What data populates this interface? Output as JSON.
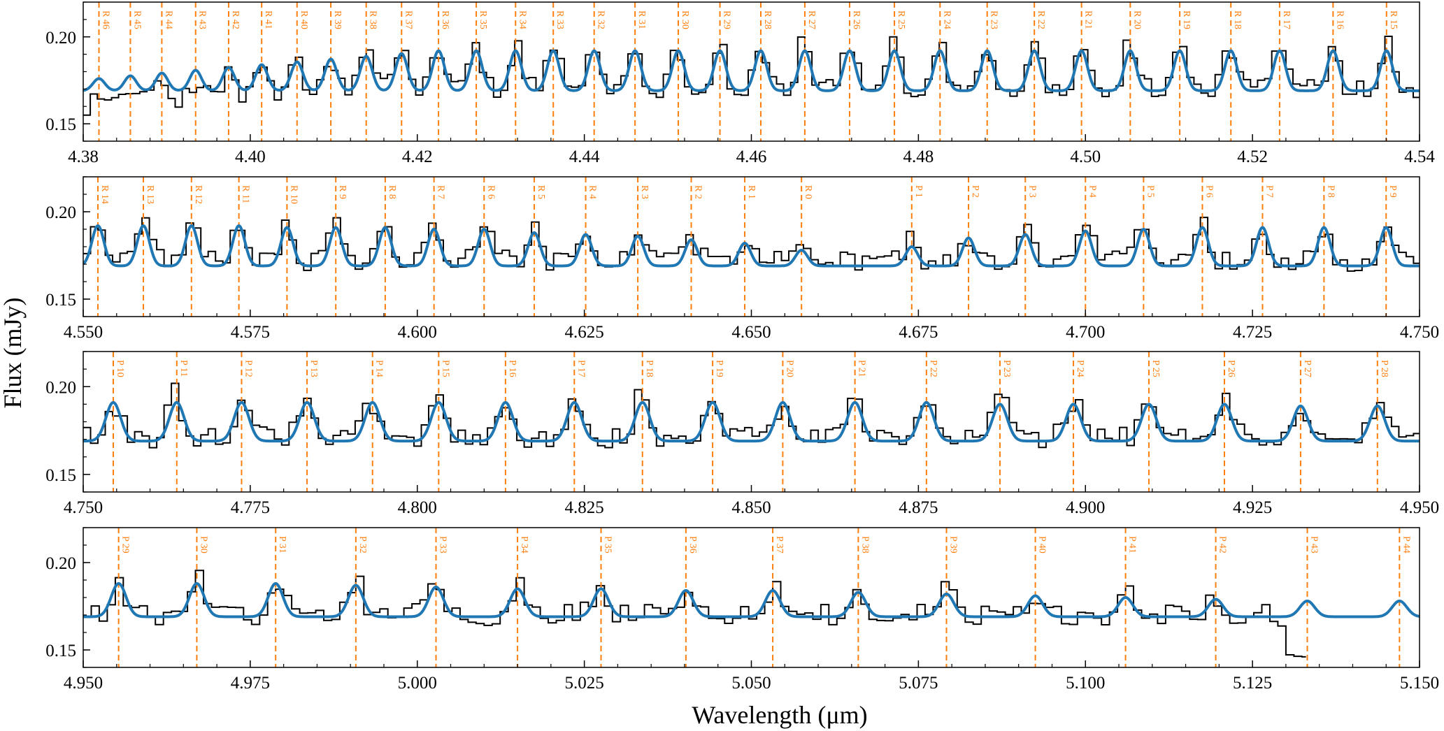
{
  "figure": {
    "ylabel": "Flux (mJy)",
    "xlabel": "Wavelength (μm)"
  },
  "colors": {
    "observed": "#000000",
    "model": "#1f77b4",
    "line_markers": "#ff7f0e"
  },
  "chart_data": [
    {
      "type": "line",
      "panel": 1,
      "xlim": [
        4.38,
        4.55
      ],
      "ylim": [
        0.14,
        0.22
      ],
      "xticks": [
        "4.38",
        "4.40",
        "4.42",
        "4.44",
        "4.46",
        "4.48",
        "4.50",
        "4.52",
        "4.54"
      ],
      "yticks": [
        "0.15",
        "0.20"
      ],
      "lines": [
        {
          "label": "R 46",
          "x": 4.382
        },
        {
          "label": "R 45",
          "x": 4.386
        },
        {
          "label": "R 44",
          "x": 4.39
        },
        {
          "label": "R 43",
          "x": 4.3943
        },
        {
          "label": "R 42",
          "x": 4.3985
        },
        {
          "label": "R 41",
          "x": 4.4027
        },
        {
          "label": "R 40",
          "x": 4.4072
        },
        {
          "label": "R 39",
          "x": 4.4115
        },
        {
          "label": "R 38",
          "x": 4.416
        },
        {
          "label": "R 37",
          "x": 4.4205
        },
        {
          "label": "R 36",
          "x": 4.4252
        },
        {
          "label": "R 35",
          "x": 4.43
        },
        {
          "label": "R 34",
          "x": 4.435
        },
        {
          "label": "R 33",
          "x": 4.4398
        },
        {
          "label": "R 32",
          "x": 4.445
        },
        {
          "label": "R 31",
          "x": 4.4502
        },
        {
          "label": "R 30",
          "x": 4.4557
        },
        {
          "label": "R 29",
          "x": 4.461
        },
        {
          "label": "R 28",
          "x": 4.4662
        },
        {
          "label": "R 27",
          "x": 4.4718
        },
        {
          "label": "R 26",
          "x": 4.4775
        },
        {
          "label": "R 25",
          "x": 4.4832
        },
        {
          "label": "R 24",
          "x": 4.489
        },
        {
          "label": "R 23",
          "x": 4.495
        },
        {
          "label": "R 22",
          "x": 4.501
        },
        {
          "label": "R 21",
          "x": 4.507
        },
        {
          "label": "R 20",
          "x": 4.5132
        },
        {
          "label": "R 19",
          "x": 4.5195
        },
        {
          "label": "R 18",
          "x": 4.526
        },
        {
          "label": "R 17",
          "x": 4.5322
        },
        {
          "label": "R 16",
          "x": 4.539
        },
        {
          "label": "R 15",
          "x": 4.5458
        }
      ],
      "model": {
        "continuum": 0.169,
        "peak": 0.192,
        "peak_at_left_edge": 0.176,
        "sigma_um": 0.00075
      },
      "observed": {
        "continuum": 0.171,
        "continuum_at_left_edge": 0.16,
        "noise": 0.006,
        "bin_um": 0.0009
      }
    },
    {
      "type": "line",
      "panel": 2,
      "xlim": [
        4.55,
        4.75
      ],
      "ylim": [
        0.14,
        0.22
      ],
      "xticks": [
        "4.550",
        "4.575",
        "4.600",
        "4.625",
        "4.650",
        "4.675",
        "4.700",
        "4.725",
        "4.750"
      ],
      "yticks": [
        "0.15",
        "0.20"
      ],
      "lines": [
        {
          "label": "R 14",
          "x": 4.5522,
          "peak": 0.192
        },
        {
          "label": "R 13",
          "x": 4.559,
          "peak": 0.192
        },
        {
          "label": "R 12",
          "x": 4.5662,
          "peak": 0.192
        },
        {
          "label": "R 11",
          "x": 4.5733,
          "peak": 0.192
        },
        {
          "label": "R 10",
          "x": 4.5805,
          "peak": 0.191
        },
        {
          "label": "R 9",
          "x": 4.5878,
          "peak": 0.191
        },
        {
          "label": "R 8",
          "x": 4.5952,
          "peak": 0.191
        },
        {
          "label": "R 7",
          "x": 4.6025,
          "peak": 0.19
        },
        {
          "label": "R 6",
          "x": 4.61,
          "peak": 0.19
        },
        {
          "label": "R 5",
          "x": 4.6175,
          "peak": 0.188
        },
        {
          "label": "R 4",
          "x": 4.6252,
          "peak": 0.187
        },
        {
          "label": "R 3",
          "x": 4.633,
          "peak": 0.186
        },
        {
          "label": "R 2",
          "x": 4.641,
          "peak": 0.184
        },
        {
          "label": "R 1",
          "x": 4.649,
          "peak": 0.182
        },
        {
          "label": "R 0",
          "x": 4.6575,
          "peak": 0.178
        },
        {
          "label": "P 1",
          "x": 4.674,
          "peak": 0.18
        },
        {
          "label": "P 2",
          "x": 4.6825,
          "peak": 0.185
        },
        {
          "label": "P 3",
          "x": 4.691,
          "peak": 0.187
        },
        {
          "label": "P 4",
          "x": 4.7,
          "peak": 0.189
        },
        {
          "label": "P 5",
          "x": 4.7087,
          "peak": 0.19
        },
        {
          "label": "P 6",
          "x": 4.7175,
          "peak": 0.191
        },
        {
          "label": "P 7",
          "x": 4.7265,
          "peak": 0.191
        },
        {
          "label": "P 8",
          "x": 4.7357,
          "peak": 0.191
        },
        {
          "label": "P 9",
          "x": 4.745,
          "peak": 0.191
        }
      ],
      "model": {
        "continuum": 0.169,
        "sigma_um": 0.0009
      },
      "observed": {
        "continuum": 0.172,
        "noise": 0.006,
        "bin_um": 0.0011
      }
    },
    {
      "type": "line",
      "panel": 3,
      "xlim": [
        4.75,
        4.95
      ],
      "ylim": [
        0.14,
        0.22
      ],
      "xticks": [
        "4.750",
        "4.775",
        "4.800",
        "4.825",
        "4.850",
        "4.875",
        "4.900",
        "4.925",
        "4.950"
      ],
      "yticks": [
        "0.15",
        "0.20"
      ],
      "lines": [
        {
          "label": "P 10",
          "x": 4.7545,
          "peak": 0.191
        },
        {
          "label": "P 11",
          "x": 4.764,
          "peak": 0.191
        },
        {
          "label": "P 12",
          "x": 4.7737,
          "peak": 0.191
        },
        {
          "label": "P 13",
          "x": 4.7835,
          "peak": 0.191
        },
        {
          "label": "P 14",
          "x": 4.7933,
          "peak": 0.191
        },
        {
          "label": "P 15",
          "x": 4.8032,
          "peak": 0.191
        },
        {
          "label": "P 16",
          "x": 4.8132,
          "peak": 0.191
        },
        {
          "label": "P 17",
          "x": 4.8235,
          "peak": 0.191
        },
        {
          "label": "P 18",
          "x": 4.8337,
          "peak": 0.191
        },
        {
          "label": "P 19",
          "x": 4.8442,
          "peak": 0.191
        },
        {
          "label": "P 20",
          "x": 4.8547,
          "peak": 0.191
        },
        {
          "label": "P 21",
          "x": 4.8655,
          "peak": 0.191
        },
        {
          "label": "P 22",
          "x": 4.8762,
          "peak": 0.191
        },
        {
          "label": "P 23",
          "x": 4.8872,
          "peak": 0.19
        },
        {
          "label": "P 24",
          "x": 4.8982,
          "peak": 0.19
        },
        {
          "label": "P 25",
          "x": 4.9095,
          "peak": 0.19
        },
        {
          "label": "P 26",
          "x": 4.9208,
          "peak": 0.19
        },
        {
          "label": "P 27",
          "x": 4.9322,
          "peak": 0.189
        },
        {
          "label": "P 28",
          "x": 4.9437,
          "peak": 0.189
        }
      ],
      "model": {
        "continuum": 0.169,
        "sigma_um": 0.0011
      },
      "observed": {
        "continuum": 0.171,
        "noise": 0.006,
        "bin_um": 0.0011
      }
    },
    {
      "type": "line",
      "panel": 4,
      "xlim": [
        4.95,
        5.15
      ],
      "ylim": [
        0.14,
        0.22
      ],
      "xticks": [
        "4.950",
        "4.975",
        "5.000",
        "5.025",
        "5.050",
        "5.075",
        "5.100",
        "5.125",
        "5.150"
      ],
      "yticks": [
        "0.15",
        "0.20"
      ],
      "lines": [
        {
          "label": "P 29",
          "x": 4.9553,
          "peak": 0.188
        },
        {
          "label": "P 30",
          "x": 4.967,
          "peak": 0.188
        },
        {
          "label": "P 31",
          "x": 4.9788,
          "peak": 0.188
        },
        {
          "label": "P 32",
          "x": 4.9908,
          "peak": 0.187
        },
        {
          "label": "P 33",
          "x": 5.0028,
          "peak": 0.186
        },
        {
          "label": "P 34",
          "x": 5.015,
          "peak": 0.185
        },
        {
          "label": "P 35",
          "x": 5.0275,
          "peak": 0.185
        },
        {
          "label": "P 36",
          "x": 5.0402,
          "peak": 0.184
        },
        {
          "label": "P 37",
          "x": 5.0532,
          "peak": 0.184
        },
        {
          "label": "P 38",
          "x": 5.066,
          "peak": 0.183
        },
        {
          "label": "P 39",
          "x": 5.0792,
          "peak": 0.182
        },
        {
          "label": "P 40",
          "x": 5.0925,
          "peak": 0.181
        },
        {
          "label": "P 41",
          "x": 5.106,
          "peak": 0.18
        },
        {
          "label": "P 42",
          "x": 5.1195,
          "peak": 0.179
        },
        {
          "label": "P 43",
          "x": 5.1332,
          "peak": 0.178
        },
        {
          "label": "P 44",
          "x": 5.147,
          "peak": 0.178
        }
      ],
      "model": {
        "continuum": 0.169,
        "sigma_um": 0.0011
      },
      "observed": {
        "continuum": 0.17,
        "noise": 0.006,
        "bin_um": 0.0012,
        "ends_at": 5.133
      }
    }
  ]
}
